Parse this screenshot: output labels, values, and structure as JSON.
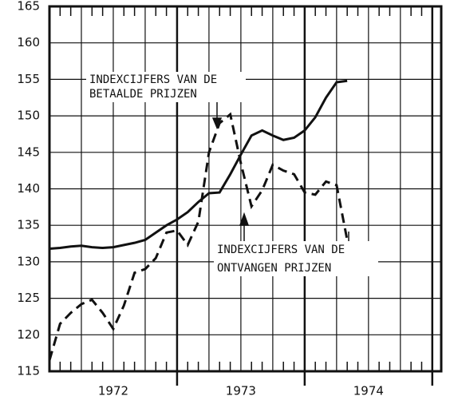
{
  "chart_data": {
    "type": "line",
    "x": [
      1972.0,
      1972.083,
      1972.167,
      1972.25,
      1972.333,
      1972.417,
      1972.5,
      1972.583,
      1972.667,
      1972.75,
      1972.833,
      1972.917,
      1973.0,
      1973.083,
      1973.167,
      1973.25,
      1973.333,
      1973.417,
      1973.5,
      1973.583,
      1973.667,
      1973.75,
      1973.833,
      1973.917,
      1974.0,
      1974.083,
      1974.167,
      1974.25,
      1974.333
    ],
    "series": [
      {
        "name": "INDEXCIJFERS VAN DE BETAALDE PRIJZEN",
        "color": "#111111",
        "dash": false,
        "values": [
          131.8,
          131.9,
          132.1,
          132.2,
          132.0,
          131.9,
          132.0,
          132.3,
          132.6,
          133.0,
          134.0,
          135.0,
          135.8,
          136.8,
          138.2,
          139.4,
          139.5,
          142.0,
          144.7,
          147.3,
          148.0,
          147.3,
          146.7,
          147.0,
          148.0,
          149.8,
          152.5,
          154.6,
          154.8
        ]
      },
      {
        "name": "INDEXCIJFERS VAN DE ONTVANGEN PRIJZEN",
        "color": "#111111",
        "dash": true,
        "values": [
          116.5,
          121.5,
          123.0,
          124.2,
          124.8,
          123.0,
          120.8,
          124.0,
          128.5,
          129.0,
          130.5,
          134.0,
          134.3,
          132.3,
          135.5,
          145.0,
          149.0,
          150.2,
          143.5,
          137.6,
          139.8,
          143.3,
          142.5,
          142.0,
          139.5,
          139.2,
          141.0,
          140.5,
          133.0
        ]
      }
    ],
    "annotations": [
      [
        "INDEXCIJFERS VAN DE",
        "BETAALDE PRIJZEN"
      ],
      [
        "INDEXCIJFERS VAN DE",
        "ONTVANGEN PRIJZEN"
      ]
    ],
    "xlim": [
      1972.0,
      1975.07
    ],
    "xticks": [
      {
        "value": 1972.5,
        "label": "1972"
      },
      {
        "value": 1973.5,
        "label": "1973"
      },
      {
        "value": 1974.5,
        "label": "1974"
      }
    ],
    "x_gridlines": [
      1972.25,
      1972.5,
      1972.75,
      1973.0,
      1973.25,
      1973.5,
      1973.75,
      1974.0,
      1974.25,
      1974.5,
      1974.75,
      1975.0
    ],
    "ylim": [
      115,
      165
    ],
    "yticks": [
      115,
      120,
      125,
      130,
      135,
      140,
      145,
      150,
      155,
      160,
      165
    ],
    "grid": true
  }
}
